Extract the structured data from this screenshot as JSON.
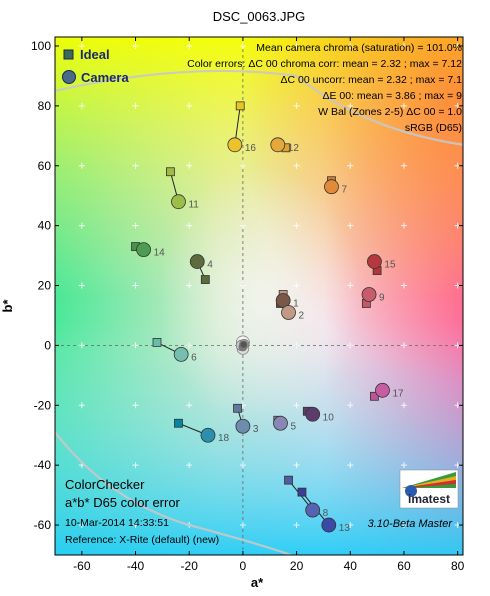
{
  "chart_data": {
    "type": "scatter",
    "title": "DSC_0063.JPG",
    "xlabel": "a*",
    "ylabel": "b*",
    "xlim": [
      -70,
      82
    ],
    "ylim": [
      -70,
      103
    ],
    "xticks": [
      -60,
      -40,
      -20,
      0,
      20,
      40,
      60,
      80
    ],
    "yticks": [
      -60,
      -40,
      -20,
      0,
      20,
      40,
      60,
      80,
      100
    ],
    "legend": {
      "position": "top-left",
      "ideal_label": "Ideal",
      "camera_label": "Camera"
    },
    "info_lines": [
      "Mean camera chroma (saturation) = 101.0%",
      "Color errors: ΔC 00 chroma corr:  mean = 2.32 ;  max = 7.12",
      "ΔC 00 uncorr:  mean = 2.32 ;  max = 7.1",
      "ΔE 00:  mean = 3.86 ;  max = 9",
      "W Bal (Zones 2-5) ΔC 00 = 1.0",
      "sRGB (D65)"
    ],
    "caption_lines": [
      "ColorChecker",
      "a*b* D65 color error"
    ],
    "footer_lines": [
      "10-Mar-2014 14:33:51",
      "Reference: X-Rite (default) (new)"
    ],
    "version": "3.10-Beta  Master",
    "logo_text": "imatest",
    "series": [
      {
        "name": "Ideal",
        "marker": "square",
        "points": [
          {
            "id": "1",
            "a": 14,
            "b": 14,
            "color": "#73523f"
          },
          {
            "id": "2",
            "a": 15,
            "b": 17,
            "color": "#c39781"
          },
          {
            "id": "3",
            "a": -2,
            "b": -21,
            "color": "#5f7a9d"
          },
          {
            "id": "4",
            "a": -14,
            "b": 22,
            "color": "#5a6b3c"
          },
          {
            "id": "5",
            "a": 13,
            "b": -25,
            "color": "#8280b1"
          },
          {
            "id": "6",
            "a": -32,
            "b": 1,
            "color": "#67bdaa"
          },
          {
            "id": "7",
            "a": 33,
            "b": 55,
            "color": "#d67e2c"
          },
          {
            "id": "8",
            "a": 17,
            "b": -45,
            "color": "#505ba6"
          },
          {
            "id": "9",
            "a": 46,
            "b": 14,
            "color": "#c15a63"
          },
          {
            "id": "10",
            "a": 24,
            "b": -22,
            "color": "#5e3c6c"
          },
          {
            "id": "11",
            "a": -27,
            "b": 58,
            "color": "#9dbc40"
          },
          {
            "id": "12",
            "a": 16,
            "b": 66,
            "color": "#e0a32e"
          },
          {
            "id": "13",
            "a": 22,
            "b": -49,
            "color": "#383d96"
          },
          {
            "id": "14",
            "a": -40,
            "b": 33,
            "color": "#469449"
          },
          {
            "id": "15",
            "a": 50,
            "b": 25,
            "color": "#af363c"
          },
          {
            "id": "16",
            "a": -1,
            "b": 80,
            "color": "#e7c71f"
          },
          {
            "id": "17",
            "a": 49,
            "b": -17,
            "color": "#bb5695"
          },
          {
            "id": "18",
            "a": -24,
            "b": -26,
            "color": "#0885a1"
          }
        ]
      },
      {
        "name": "Camera",
        "marker": "circle",
        "points": [
          {
            "id": "1",
            "a": 15,
            "b": 15,
            "color": "#7a5848"
          },
          {
            "id": "2",
            "a": 17,
            "b": 11,
            "color": "#c29886"
          },
          {
            "id": "3",
            "a": 0,
            "b": -27,
            "color": "#6e8cad"
          },
          {
            "id": "4",
            "a": -17,
            "b": 28,
            "color": "#5e6b3e"
          },
          {
            "id": "5",
            "a": 14,
            "b": -26,
            "color": "#8a86b5"
          },
          {
            "id": "6",
            "a": -23,
            "b": -3,
            "color": "#74bfae"
          },
          {
            "id": "7",
            "a": 33,
            "b": 53,
            "color": "#e08a3a"
          },
          {
            "id": "8",
            "a": 26,
            "b": -55,
            "color": "#5663b3"
          },
          {
            "id": "9",
            "a": 47,
            "b": 17,
            "color": "#c95c6c"
          },
          {
            "id": "10",
            "a": 26,
            "b": -23,
            "color": "#5c3c6a"
          },
          {
            "id": "11",
            "a": -24,
            "b": 48,
            "color": "#9cbd48"
          },
          {
            "id": "12",
            "a": 13,
            "b": 67,
            "color": "#e6a83a"
          },
          {
            "id": "13",
            "a": 32,
            "b": -60,
            "color": "#3b48a8"
          },
          {
            "id": "14",
            "a": -37,
            "b": 32,
            "color": "#4c9c52"
          },
          {
            "id": "15",
            "a": 49,
            "b": 28,
            "color": "#b5383f"
          },
          {
            "id": "16",
            "a": -3,
            "b": 67,
            "color": "#ecc32c"
          },
          {
            "id": "17",
            "a": 52,
            "b": -15,
            "color": "#c65da3"
          },
          {
            "id": "18",
            "a": -13,
            "b": -30,
            "color": "#2a90ad"
          }
        ]
      }
    ],
    "neutral_points": [
      {
        "a": 0,
        "b": 1,
        "color": "#f3f3f2"
      },
      {
        "a": 0,
        "b": -1,
        "color": "#dcdcdc"
      },
      {
        "a": -0.5,
        "b": 0,
        "color": "#c8c8c8"
      },
      {
        "a": 0.5,
        "b": 0.5,
        "color": "#a0a0a0"
      },
      {
        "a": 0,
        "b": -0.5,
        "color": "#7a7a7a"
      },
      {
        "a": 0.3,
        "b": 0.3,
        "color": "#555555"
      }
    ]
  }
}
